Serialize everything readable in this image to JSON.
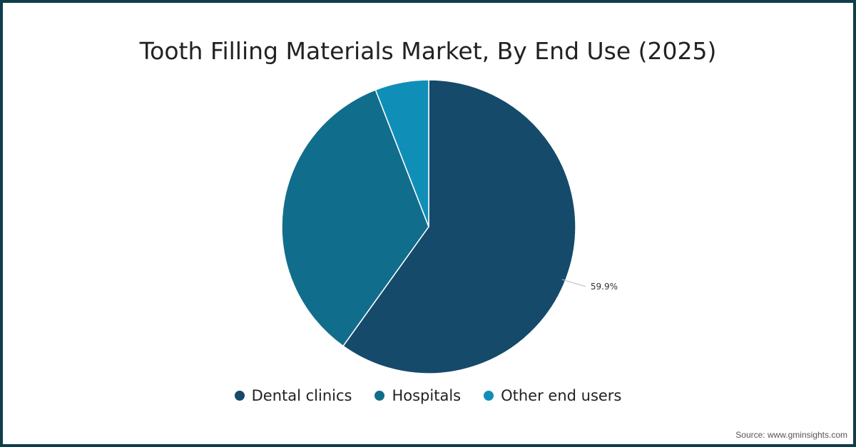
{
  "source": "Source: www.gminsights.com",
  "chart_data": {
    "type": "pie",
    "title": "Tooth Filling Materials Market, By End Use (2025)",
    "categories": [
      "Dental clinics",
      "Hospitals",
      "Other end users"
    ],
    "values": [
      59.9,
      34.2,
      5.9
    ],
    "colors": [
      "#154a6b",
      "#116d8c",
      "#0f8fb8"
    ],
    "data_labels": [
      "59.9%",
      "",
      ""
    ],
    "legend_position": "bottom",
    "start_angle": "top, clockwise"
  }
}
